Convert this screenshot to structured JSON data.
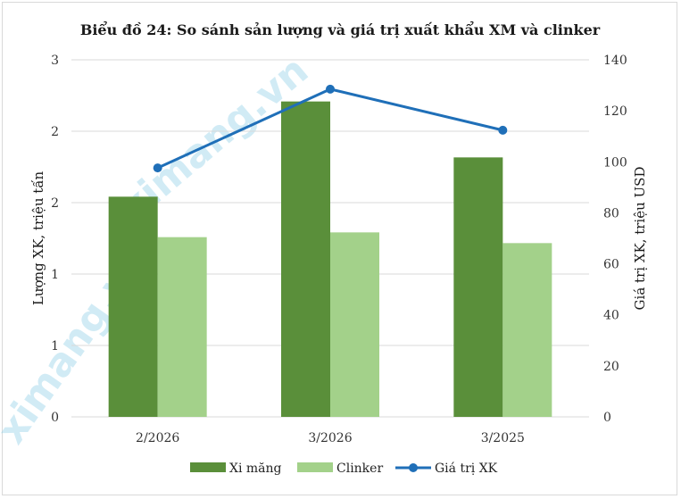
{
  "chart_data": {
    "type": "bar+line",
    "title": "Biểu đồ 24: So sánh sản lượng và giá trị xuất khẩu XM và clinker",
    "categories": [
      "2/2026",
      "3/2026",
      "3/2025"
    ],
    "series": [
      {
        "name": "Xi măng",
        "type": "bar",
        "axis": "left",
        "color": "#5a8f3a",
        "values": [
          1.85,
          2.65,
          2.18
        ]
      },
      {
        "name": "Clinker",
        "type": "bar",
        "axis": "left",
        "color": "#a3d18a",
        "values": [
          1.51,
          1.55,
          1.46
        ]
      },
      {
        "name": "Giá trị XK",
        "type": "line",
        "axis": "right",
        "color": "#1f6fb8",
        "values": [
          97.6,
          128.5,
          112.4
        ]
      }
    ],
    "ylabel_left": "Lượng XK, triệu tấn",
    "ylabel_right": "Giá trị XK, triệu USD",
    "ylim_left": [
      0,
      3
    ],
    "ylim_right": [
      0,
      140
    ],
    "yticks_left": [
      "0",
      "1",
      "1",
      "2",
      "2",
      "3"
    ],
    "yticks_right": [
      "0",
      "20",
      "40",
      "60",
      "80",
      "100",
      "120",
      "140"
    ],
    "grid": true,
    "legend_position": "bottom"
  },
  "watermark": "ximang.vn"
}
